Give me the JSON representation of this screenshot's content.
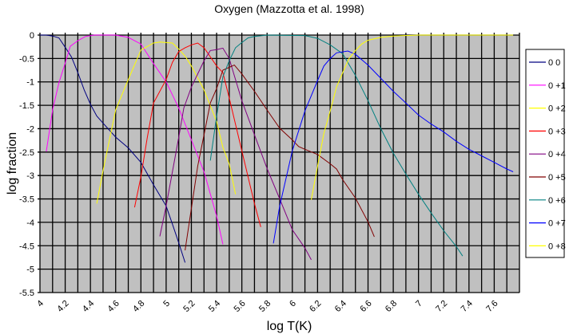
{
  "chart_data": {
    "type": "line",
    "title": "Oxygen (Mazzotta et al. 1998)",
    "xlabel": "log T(K)",
    "ylabel": "log fraction",
    "xlim": [
      4.0,
      7.8
    ],
    "ylim": [
      -5.5,
      0
    ],
    "grid": true,
    "legend_position": "right",
    "plot_background": "#c0c0c0",
    "x_tick_labels": [
      "4",
      "4.2",
      "4.4",
      "4.6",
      "4.8",
      "5",
      "5.2",
      "5.4",
      "5.6",
      "5.8",
      "6",
      "6.2",
      "6.4",
      "6.6",
      "6.8",
      "7",
      "7.2",
      "7.4",
      "7.6"
    ],
    "x_ticks": [
      4.0,
      4.2,
      4.4,
      4.6,
      4.8,
      5.0,
      5.2,
      5.4,
      5.6,
      5.8,
      6.0,
      6.2,
      6.4,
      6.6,
      6.8,
      7.0,
      7.2,
      7.4,
      7.6
    ],
    "y_tick_labels": [
      "0",
      "-0.5",
      "-1",
      "-1.5",
      "-2",
      "-2.5",
      "-3",
      "-3.5",
      "-4",
      "-4.5",
      "-5",
      "-5.5"
    ],
    "y_ticks": [
      0,
      -0.5,
      -1,
      -1.5,
      -2,
      -2.5,
      -3,
      -3.5,
      -4,
      -4.5,
      -5,
      -5.5
    ],
    "series": [
      {
        "name": "0  0",
        "color": "#000080",
        "x": [
          4.0,
          4.05,
          4.1,
          4.15,
          4.2,
          4.25,
          4.3,
          4.35,
          4.4,
          4.45,
          4.5,
          4.6,
          4.7,
          4.8,
          4.9,
          5.0,
          5.05,
          5.1,
          5.15
        ],
        "y": [
          0,
          0,
          -0.02,
          -0.06,
          -0.26,
          -0.47,
          -0.8,
          -1.17,
          -1.48,
          -1.73,
          -1.88,
          -2.18,
          -2.41,
          -2.72,
          -3.2,
          -3.65,
          -4.04,
          -4.44,
          -4.86
        ]
      },
      {
        "name": "0 +1",
        "color": "#ff00ff",
        "x": [
          4.05,
          4.1,
          4.15,
          4.2,
          4.24,
          4.3,
          4.36,
          4.43,
          4.5,
          4.6,
          4.7,
          4.8,
          4.9,
          5.0,
          5.1,
          5.2,
          5.3,
          5.4,
          5.45
        ],
        "y": [
          -2.49,
          -1.6,
          -1.02,
          -0.6,
          -0.24,
          -0.12,
          -0.03,
          0,
          0,
          0,
          -0.05,
          -0.19,
          -0.61,
          -1.0,
          -1.56,
          -2.24,
          -2.92,
          -3.87,
          -4.47
        ]
      },
      {
        "name": "0 +2",
        "color": "#ffff00",
        "x": [
          4.45,
          4.5,
          4.6,
          4.7,
          4.8,
          4.9,
          4.95,
          5.05,
          5.1,
          5.15,
          5.2,
          5.3,
          5.4,
          5.45,
          5.5,
          5.55
        ],
        "y": [
          -3.6,
          -2.9,
          -1.6,
          -0.95,
          -0.32,
          -0.17,
          -0.15,
          -0.17,
          -0.3,
          -0.45,
          -0.66,
          -1.17,
          -1.85,
          -2.4,
          -2.75,
          -3.4
        ]
      },
      {
        "name": "0 +3",
        "color": "#ff0000",
        "x": [
          4.75,
          4.8,
          4.85,
          4.9,
          5.0,
          5.05,
          5.1,
          5.15,
          5.2,
          5.25,
          5.3,
          5.4,
          5.45,
          5.5,
          5.6,
          5.7,
          5.75
        ],
        "y": [
          -3.68,
          -3.03,
          -2.2,
          -1.45,
          -0.95,
          -0.58,
          -0.35,
          -0.27,
          -0.21,
          -0.17,
          -0.27,
          -0.66,
          -0.8,
          -1.34,
          -2.47,
          -3.6,
          -4.1
        ]
      },
      {
        "name": "0 +4",
        "color": "#800080",
        "x": [
          4.95,
          5.0,
          5.1,
          5.14,
          5.2,
          5.3,
          5.35,
          5.4,
          5.45,
          5.5,
          5.6,
          5.7,
          5.8,
          5.9,
          6.0,
          6.1,
          6.15
        ],
        "y": [
          -4.3,
          -3.65,
          -2.18,
          -1.56,
          -1.11,
          -0.55,
          -0.33,
          -0.31,
          -0.28,
          -0.5,
          -1.4,
          -2.13,
          -2.85,
          -3.5,
          -4.16,
          -4.55,
          -4.8
        ]
      },
      {
        "name": "0 +5",
        "color": "#800000",
        "x": [
          5.15,
          5.2,
          5.25,
          5.3,
          5.35,
          5.4,
          5.45,
          5.5,
          5.54,
          5.6,
          5.7,
          5.8,
          5.9,
          6.0,
          6.05,
          6.1,
          6.2,
          6.3,
          6.35,
          6.4,
          6.5,
          6.6,
          6.65
        ],
        "y": [
          -4.6,
          -3.7,
          -2.8,
          -2.13,
          -1.45,
          -1.14,
          -0.75,
          -0.69,
          -0.64,
          -0.83,
          -1.2,
          -1.6,
          -1.99,
          -2.24,
          -2.38,
          -2.44,
          -2.55,
          -2.75,
          -2.86,
          -3.09,
          -3.48,
          -3.99,
          -4.31
        ]
      },
      {
        "name": "0 +6",
        "color": "#008080",
        "x": [
          5.35,
          5.4,
          5.45,
          5.5,
          5.55,
          5.6,
          5.65,
          5.7,
          5.8,
          6.1,
          6.2,
          6.3,
          6.4,
          6.5,
          6.6,
          6.7,
          6.8,
          6.9,
          7.0,
          7.1,
          7.2,
          7.3,
          7.35
        ],
        "y": [
          -2.68,
          -1.73,
          -0.89,
          -0.55,
          -0.27,
          -0.16,
          -0.06,
          -0.03,
          0,
          -0.01,
          -0.07,
          -0.21,
          -0.4,
          -0.86,
          -1.4,
          -1.99,
          -2.52,
          -2.97,
          -3.4,
          -3.8,
          -4.18,
          -4.52,
          -4.72
        ]
      },
      {
        "name": "0 +7",
        "color": "#0000ff",
        "x": [
          5.85,
          5.9,
          6.0,
          6.1,
          6.2,
          6.25,
          6.3,
          6.35,
          6.44,
          6.5,
          6.6,
          6.7,
          6.8,
          6.9,
          7.0,
          7.1,
          7.2,
          7.3,
          7.4,
          7.5,
          7.6,
          7.7,
          7.75
        ],
        "y": [
          -4.45,
          -3.65,
          -2.47,
          -1.62,
          -0.97,
          -0.66,
          -0.5,
          -0.38,
          -0.34,
          -0.41,
          -0.64,
          -0.92,
          -1.2,
          -1.45,
          -1.71,
          -1.9,
          -2.07,
          -2.27,
          -2.44,
          -2.58,
          -2.72,
          -2.86,
          -2.92
        ]
      },
      {
        "name": "0 +8",
        "color": "#ffff00",
        "x": [
          6.15,
          6.2,
          6.25,
          6.3,
          6.35,
          6.4,
          6.45,
          6.5,
          6.55,
          6.6,
          6.7,
          6.8,
          7.0,
          7.75
        ],
        "y": [
          -3.52,
          -2.8,
          -2.1,
          -1.62,
          -1.11,
          -0.8,
          -0.5,
          -0.33,
          -0.19,
          -0.11,
          -0.05,
          -0.02,
          0,
          0
        ]
      }
    ]
  }
}
